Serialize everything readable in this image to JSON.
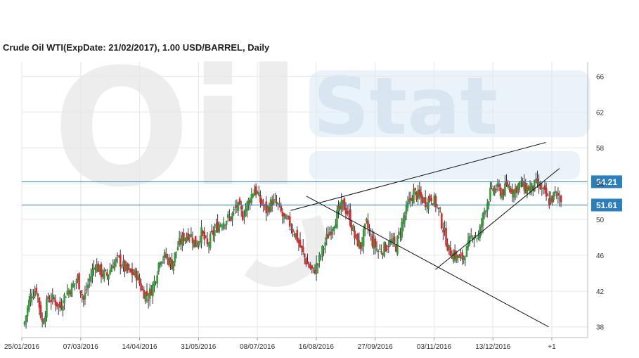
{
  "chart_data": {
    "type": "candlestick",
    "title": "Crude Oil WTI(ExpDate: 21/02/2017), 1.00 USD/BARREL, Daily",
    "watermark": {
      "left": "Oil",
      "right": "Stat"
    },
    "y_ticks": [
      38,
      42,
      46,
      50,
      54,
      58,
      62,
      66
    ],
    "ylim": [
      36.8,
      67.6
    ],
    "x_tick_labels": [
      "25/01/2016",
      "07/03/2016",
      "14/04/2016",
      "31/05/2016",
      "08/07/2016",
      "16/08/2016",
      "27/09/2016",
      "03/11/2016",
      "13/12/2016",
      "+1"
    ],
    "grid": true,
    "colors": {
      "up": "#2e9e35",
      "down": "#e0262b",
      "level_line": "#2a7fc0",
      "badge": "#2a7fc0",
      "trend_line": "#111111"
    },
    "levels": [
      {
        "label": "54.21",
        "value": 54.21
      },
      {
        "label": "51.61",
        "value": 51.61
      }
    ],
    "trend_lines": [
      {
        "from": [
          47.5,
          51.0
        ],
        "to": [
          92.6,
          58.6
        ]
      },
      {
        "from": [
          50.3,
          52.6
        ],
        "to": [
          93.1,
          38.0
        ]
      },
      {
        "from": [
          73.1,
          44.4
        ],
        "to": [
          95.0,
          55.7
        ]
      }
    ],
    "close_points": [
      [
        0,
        38.6
      ],
      [
        1,
        41.5
      ],
      [
        2,
        42.3
      ],
      [
        3,
        38.4
      ],
      [
        4,
        41.2
      ],
      [
        5,
        41.0
      ],
      [
        6,
        40.2
      ],
      [
        7,
        41.8
      ],
      [
        8,
        42.4
      ],
      [
        9,
        43.4
      ],
      [
        10,
        41.0
      ],
      [
        11,
        43.3
      ],
      [
        12,
        45.1
      ],
      [
        13,
        44.0
      ],
      [
        14,
        43.7
      ],
      [
        15,
        45.1
      ],
      [
        16,
        45.5
      ],
      [
        17,
        44.5
      ],
      [
        18,
        44.0
      ],
      [
        19,
        43.8
      ],
      [
        20,
        42.0
      ],
      [
        21,
        41.4
      ],
      [
        22,
        43.0
      ],
      [
        23,
        45.8
      ],
      [
        24,
        45.8
      ],
      [
        25,
        45.0
      ],
      [
        26,
        47.0
      ],
      [
        27,
        48.0
      ],
      [
        28,
        48.5
      ],
      [
        29,
        47.2
      ],
      [
        30,
        48.5
      ],
      [
        31,
        47.0
      ],
      [
        32,
        48.5
      ],
      [
        33,
        49.5
      ],
      [
        34,
        50.0
      ],
      [
        35,
        50.2
      ],
      [
        36,
        51.5
      ],
      [
        37,
        50.5
      ],
      [
        38,
        52.0
      ],
      [
        39,
        53.5
      ],
      [
        40,
        52.0
      ],
      [
        41,
        51.0
      ],
      [
        42,
        52.0
      ],
      [
        43,
        51.5
      ],
      [
        44,
        50.0
      ],
      [
        45,
        49.5
      ],
      [
        46,
        48.3
      ],
      [
        47,
        46.5
      ],
      [
        48,
        45.0
      ],
      [
        49,
        44.1
      ],
      [
        50,
        45.5
      ],
      [
        51,
        47.5
      ],
      [
        52,
        49.0
      ],
      [
        53,
        50.5
      ],
      [
        54,
        51.7
      ],
      [
        55,
        50.5
      ],
      [
        56,
        48.0
      ],
      [
        57,
        47.0
      ],
      [
        58,
        49.5
      ],
      [
        59,
        47.5
      ],
      [
        60,
        46.5
      ],
      [
        61,
        46.8
      ],
      [
        62,
        47.5
      ],
      [
        63,
        47.0
      ],
      [
        64,
        49.5
      ],
      [
        65,
        51.5
      ],
      [
        66,
        53.0
      ],
      [
        67,
        52.5
      ],
      [
        68,
        52.0
      ],
      [
        69,
        52.5
      ],
      [
        70,
        51.5
      ],
      [
        71,
        49.0
      ],
      [
        72,
        46.5
      ],
      [
        73,
        46.0
      ],
      [
        74,
        45.5
      ],
      [
        75,
        46.5
      ],
      [
        76,
        48.5
      ],
      [
        77,
        48.0
      ],
      [
        78,
        51.0
      ],
      [
        79,
        53.0
      ],
      [
        80,
        53.5
      ],
      [
        81,
        53.0
      ],
      [
        82,
        53.8
      ],
      [
        83,
        53.2
      ],
      [
        84,
        54.0
      ],
      [
        85,
        53.5
      ],
      [
        86,
        53.5
      ],
      [
        87,
        54.0
      ],
      [
        88,
        53.0
      ],
      [
        89,
        52.0
      ],
      [
        90,
        52.8
      ],
      [
        91,
        52.3
      ]
    ]
  }
}
